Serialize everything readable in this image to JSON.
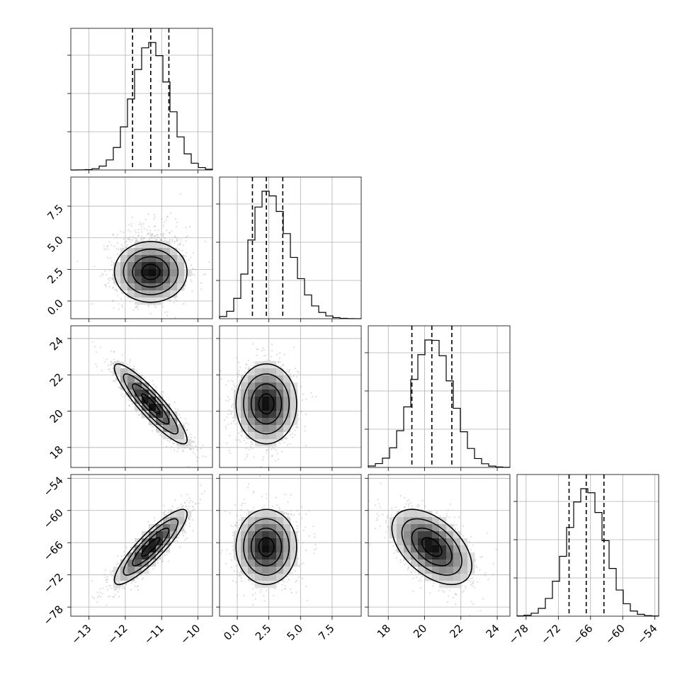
{
  "chart_data": {
    "type": "corner",
    "title": "",
    "grid": true,
    "colors": {
      "line": "#000000",
      "grid": "#b0b0b0",
      "scatter": "#9e9e9e",
      "background": "#ffffff"
    },
    "parameters": [
      {
        "index": 0,
        "range": [
          -13.5,
          -9.6
        ],
        "ticks": [
          -13,
          -12,
          -11,
          -10
        ],
        "tick_labels": [
          "−13",
          "−12",
          "−11",
          "−10"
        ],
        "mean": -11.3,
        "sd": 0.5,
        "quantiles": [
          -11.8,
          -11.3,
          -10.8
        ],
        "hist_bins": 20,
        "hist_peak": 1.0
      },
      {
        "index": 1,
        "range": [
          -1.4,
          9.8
        ],
        "ticks": [
          0.0,
          2.5,
          5.0,
          7.5
        ],
        "tick_labels": [
          "0.0",
          "2.5",
          "5.0",
          "7.5"
        ],
        "mean": 2.3,
        "sd": 1.2,
        "quantiles": [
          1.2,
          2.3,
          3.6
        ],
        "hist_bins": 20,
        "hist_peak": 1.0
      },
      {
        "index": 2,
        "range": [
          16.9,
          24.7
        ],
        "ticks": [
          18,
          20,
          22,
          24
        ],
        "tick_labels": [
          "18",
          "20",
          "22",
          "24"
        ],
        "mean": 20.4,
        "sd": 1.1,
        "quantiles": [
          19.3,
          20.4,
          21.5
        ],
        "hist_bins": 20,
        "hist_peak": 1.0
      },
      {
        "index": 3,
        "range": [
          -79.7,
          -53.3
        ],
        "ticks": [
          -78,
          -72,
          -66,
          -60,
          -54
        ],
        "tick_labels": [
          "−78",
          "−72",
          "−66",
          "−60",
          "−54"
        ],
        "mean": -66.8,
        "sd": 3.5,
        "quantiles": [
          -70.0,
          -66.8,
          -63.5
        ],
        "hist_bins": 20,
        "hist_peak": 1.0
      }
    ],
    "correlations": [
      {
        "x": 0,
        "y": 1,
        "rho": 0.0
      },
      {
        "x": 0,
        "y": 2,
        "rho": -0.9
      },
      {
        "x": 1,
        "y": 2,
        "rho": 0.0
      },
      {
        "x": 0,
        "y": 3,
        "rho": 0.88
      },
      {
        "x": 1,
        "y": 3,
        "rho": 0.0
      },
      {
        "x": 2,
        "y": 3,
        "rho": -0.5
      }
    ],
    "contour_levels_sigma": [
      0.5,
      1.0,
      1.5,
      2.0
    ]
  }
}
